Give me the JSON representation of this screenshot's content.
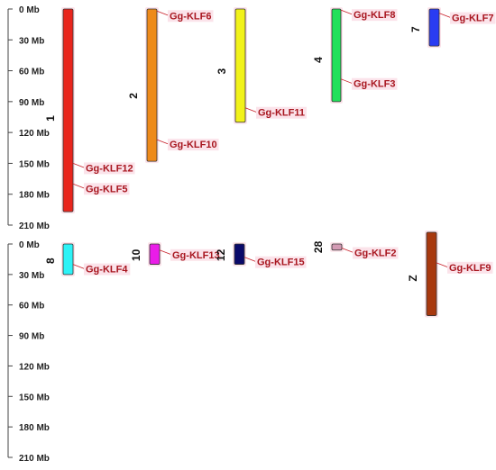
{
  "axis": {
    "ticks": [
      "0 Mb",
      "30 Mb",
      "60 Mb",
      "90 Mb",
      "120 Mb",
      "150 Mb",
      "180 Mb",
      "210 Mb"
    ],
    "tick_values": [
      0,
      30,
      60,
      90,
      120,
      150,
      180,
      210
    ],
    "max": 210
  },
  "rows": [
    {
      "chromosomes": [
        {
          "name": "1",
          "length": 197,
          "color": "#e8241c",
          "genes": [
            {
              "name": "Gg-KLF12",
              "pos": 150
            },
            {
              "name": "Gg-KLF5",
              "pos": 170
            }
          ]
        },
        {
          "name": "2",
          "length": 148,
          "color": "#ee8a1a",
          "genes": [
            {
              "name": "Gg-KLF6",
              "pos": 2
            },
            {
              "name": "Gg-KLF10",
              "pos": 127
            }
          ]
        },
        {
          "name": "3",
          "length": 110,
          "color": "#f2f21a",
          "genes": [
            {
              "name": "Gg-KLF11",
              "pos": 96
            }
          ]
        },
        {
          "name": "4",
          "length": 90,
          "color": "#22e05a",
          "genes": [
            {
              "name": "Gg-KLF8",
              "pos": 1
            },
            {
              "name": "Gg-KLF3",
              "pos": 68
            }
          ]
        },
        {
          "name": "7",
          "length": 36,
          "color": "#2a3cf2",
          "genes": [
            {
              "name": "Gg-KLF7",
              "pos": 4
            }
          ]
        }
      ]
    },
    {
      "chromosomes": [
        {
          "name": "8",
          "length": 30,
          "color": "#2ef2f6",
          "genes": [
            {
              "name": "Gg-KLF4",
              "pos": 20
            }
          ]
        },
        {
          "name": "10",
          "length": 20,
          "color": "#ea1ce8",
          "genes": [
            {
              "name": "Gg-KLF13",
              "pos": 6
            }
          ]
        },
        {
          "name": "12",
          "length": 20,
          "color": "#0a0a6a",
          "genes": [
            {
              "name": "Gg-KLF15",
              "pos": 13
            }
          ]
        },
        {
          "name": "28",
          "length": 6,
          "color": "#d49ab4",
          "genes": [
            {
              "name": "Gg-KLF2",
              "pos": 4
            }
          ]
        },
        {
          "name": "Z",
          "length": 82,
          "color": "#a8380e",
          "genes": [
            {
              "name": "Gg-KLF9",
              "pos": 30
            }
          ]
        }
      ]
    }
  ]
}
